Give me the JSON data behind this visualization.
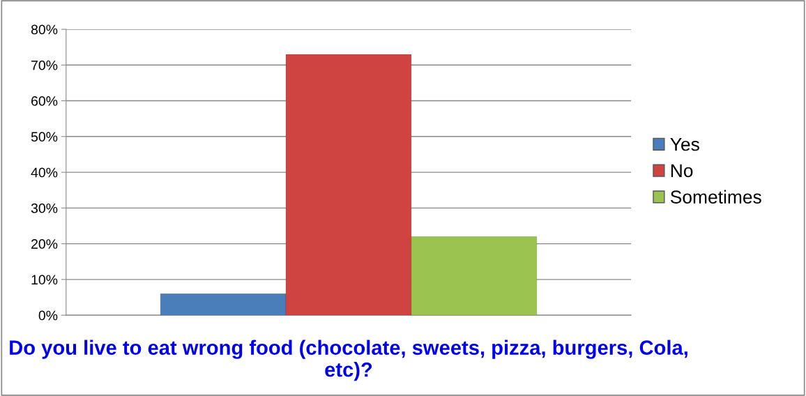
{
  "chart_data": {
    "type": "bar",
    "xlabel": "Do you live to eat wrong food (chocolate, sweets, pizza, burgers, Cola, etc)?",
    "categories": [
      null
    ],
    "series": [
      {
        "name": "Yes",
        "color": "#4a7ebb",
        "values": [
          6
        ]
      },
      {
        "name": "No",
        "color": "#cf4440",
        "values": [
          73
        ]
      },
      {
        "name": "Sometimes",
        "color": "#9bc34f",
        "values": [
          22
        ]
      }
    ],
    "ylim": [
      0,
      80
    ],
    "yticks": [
      {
        "value": 0,
        "label": "0%"
      },
      {
        "value": 10,
        "label": "10%"
      },
      {
        "value": 20,
        "label": "20%"
      },
      {
        "value": 30,
        "label": "30%"
      },
      {
        "value": 40,
        "label": "40%"
      },
      {
        "value": 50,
        "label": "50%"
      },
      {
        "value": 60,
        "label": "60%"
      },
      {
        "value": 70,
        "label": "70%"
      },
      {
        "value": 80,
        "label": "80%"
      }
    ],
    "grid": "y",
    "legend": "right"
  }
}
